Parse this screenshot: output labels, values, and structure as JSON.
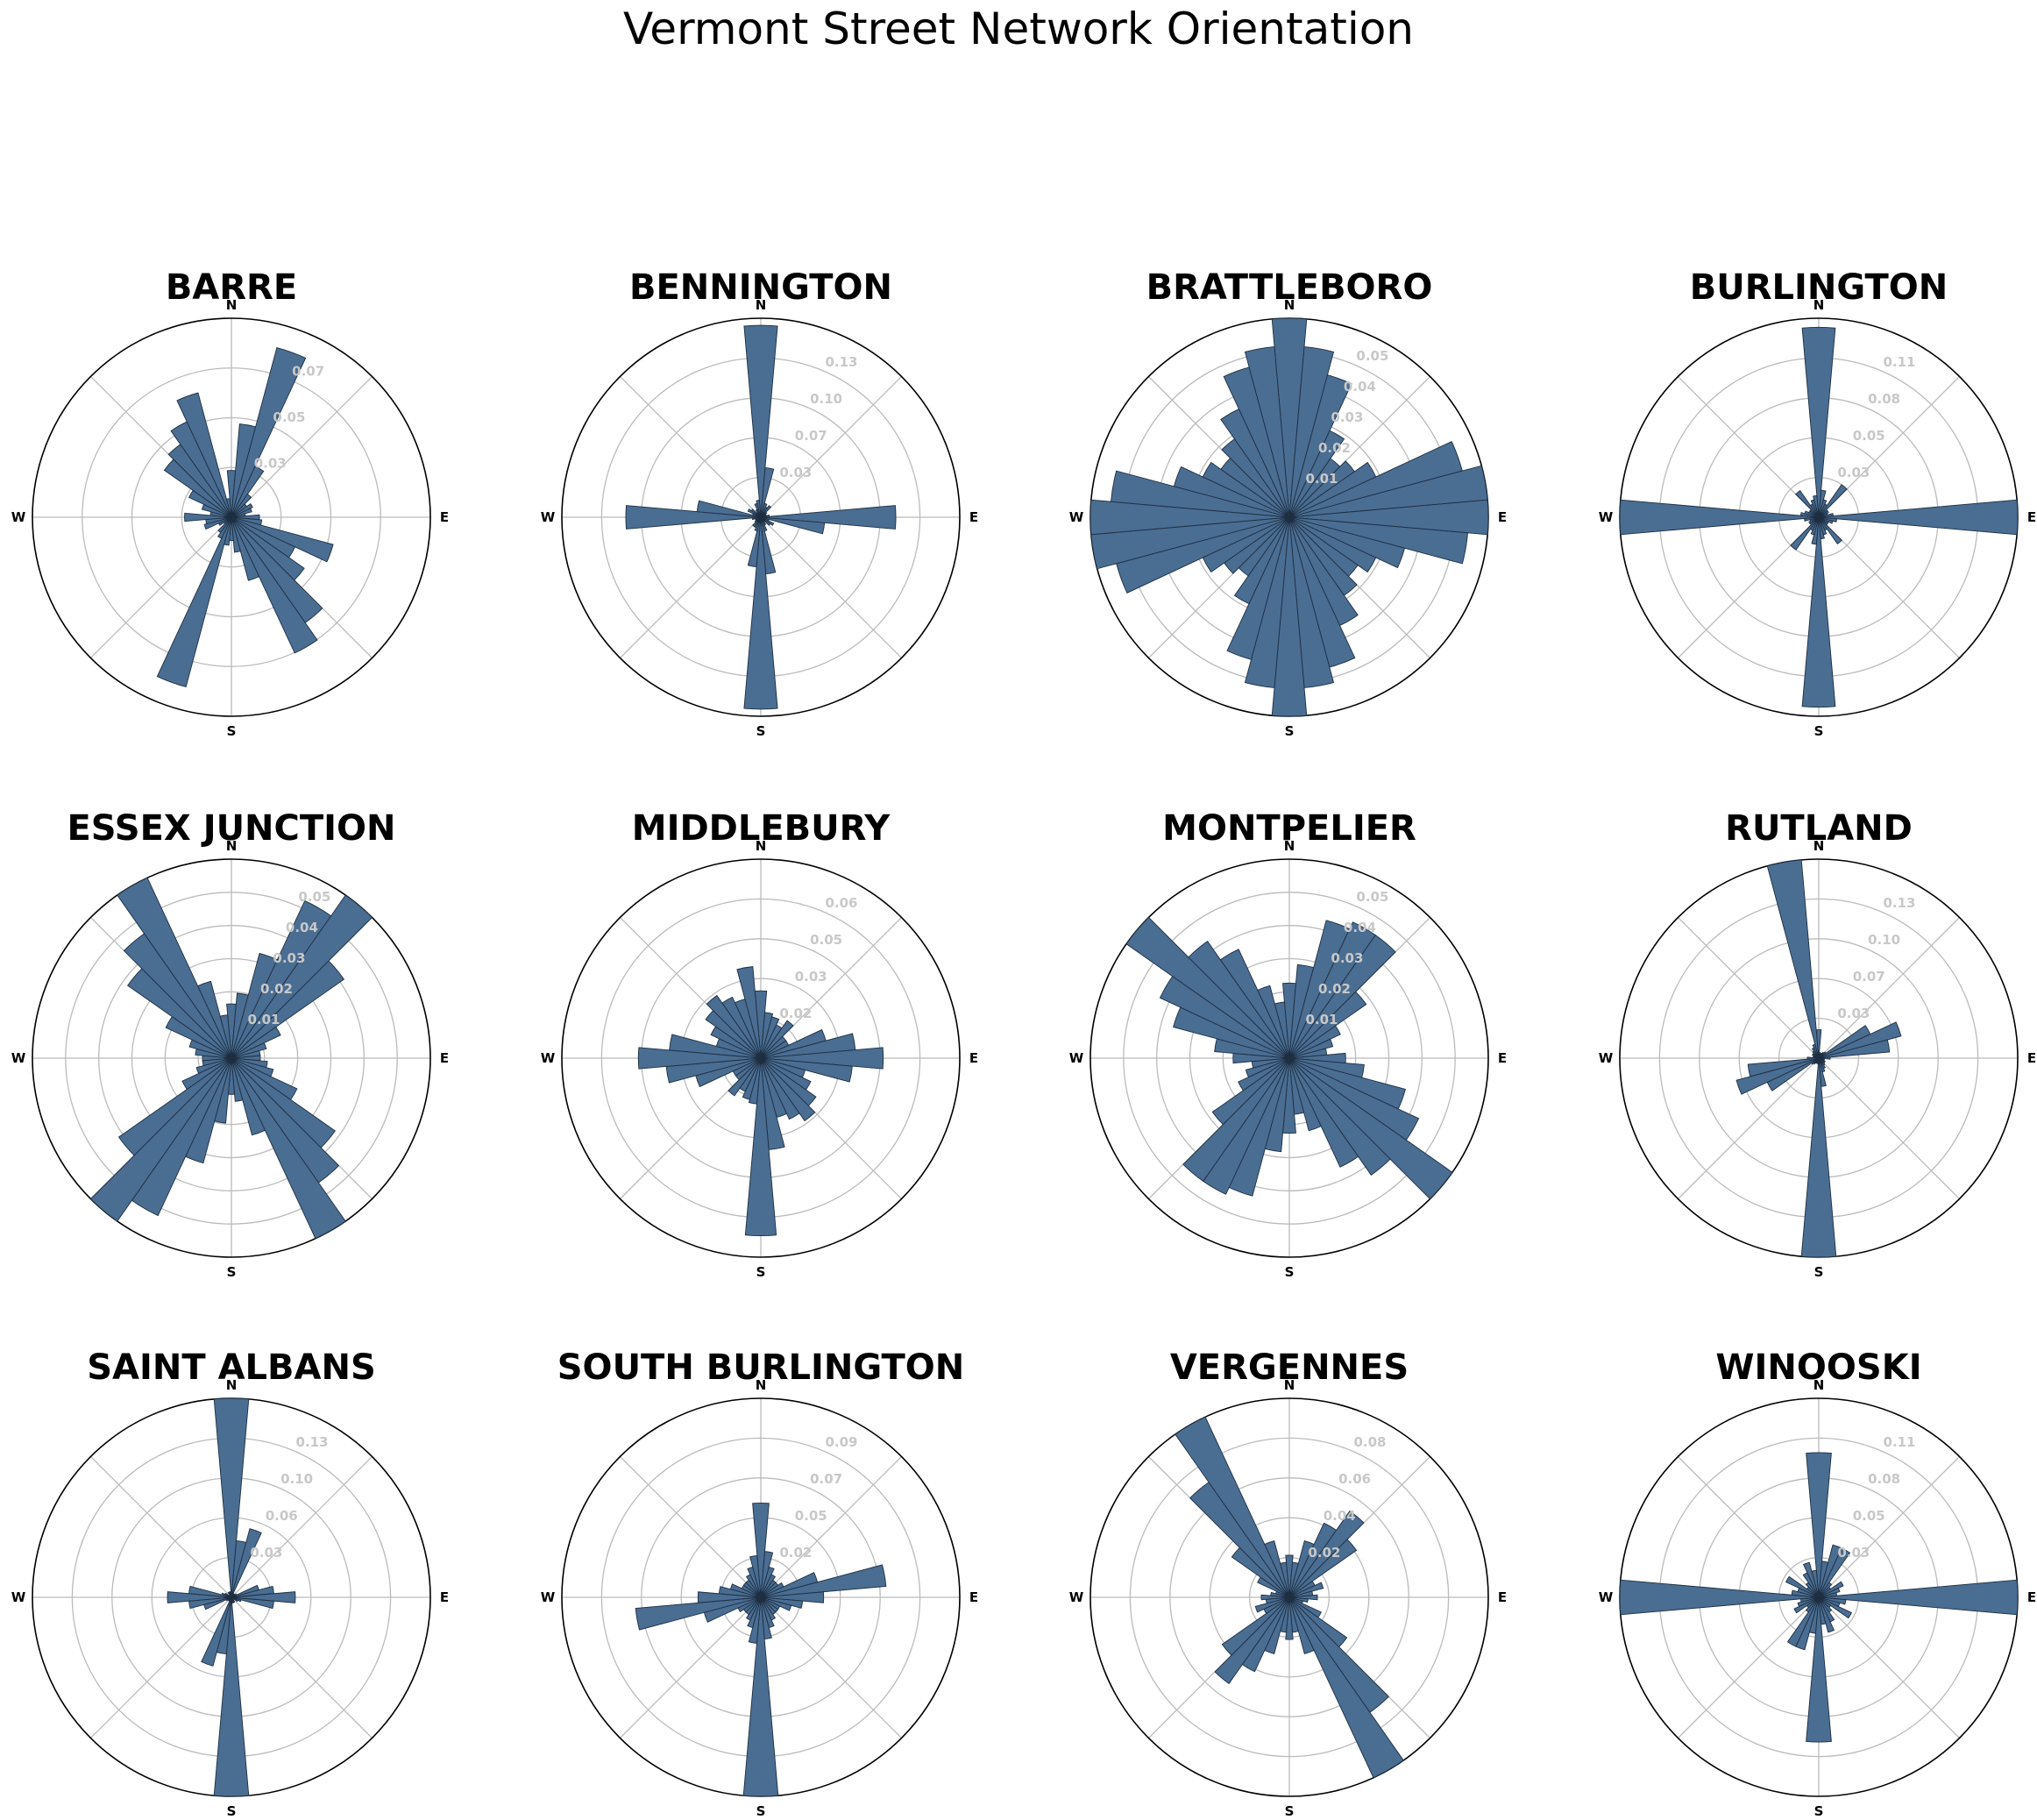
{
  "title": "Vermont Street Network Orientation",
  "colors": {
    "bar_fill": "#4a6d92",
    "bar_edge": "#1e2f42",
    "grid": "#bbbbbb",
    "outer_ring": "#000000",
    "tick_label": "#c8c8c8"
  },
  "directions": [
    "N",
    "E",
    "S",
    "W"
  ],
  "chart_data": [
    {
      "type": "polar-bar",
      "title": "BARRE",
      "bins": 36,
      "bin_start_deg": 0,
      "direction": "clockwise",
      "zero_location": "N",
      "ytick_labels": [
        "0.03",
        "0.05",
        "0.07"
      ],
      "rmax": 0.085,
      "grid": true,
      "values": [
        0.02,
        0.04,
        0.075,
        0.024,
        0.012,
        0.008,
        0.01,
        0.009,
        0.006,
        0.012,
        0.013,
        0.045,
        0.03,
        0.038,
        0.055,
        0.064,
        0.028,
        0.015,
        0.01,
        0.012,
        0.075,
        0.01,
        0.008,
        0.004,
        0.006,
        0.012,
        0.011,
        0.02,
        0.009,
        0.013,
        0.02,
        0.035,
        0.038,
        0.045,
        0.055,
        0.008
      ]
    },
    {
      "type": "polar-bar",
      "title": "BENNINGTON",
      "bins": 36,
      "bin_start_deg": 0,
      "direction": "clockwise",
      "zero_location": "N",
      "ytick_labels": [
        "0.03",
        "0.07",
        "0.10",
        "0.13"
      ],
      "rmax": 0.14,
      "grid": true,
      "values": [
        0.135,
        0.035,
        0.01,
        0.008,
        0.01,
        0.005,
        0.004,
        0.004,
        0.006,
        0.095,
        0.045,
        0.006,
        0.01,
        0.008,
        0.004,
        0.006,
        0.01,
        0.04,
        0.135,
        0.035,
        0.01,
        0.008,
        0.008,
        0.005,
        0.004,
        0.004,
        0.006,
        0.095,
        0.045,
        0.006,
        0.01,
        0.008,
        0.004,
        0.006,
        0.01,
        0.012
      ]
    },
    {
      "type": "polar-bar",
      "title": "BRATTLEBORO",
      "bins": 36,
      "bin_start_deg": 0,
      "direction": "clockwise",
      "zero_location": "N",
      "ytick_labels": [
        "0.01",
        "0.02",
        "0.03",
        "0.04",
        "0.05"
      ],
      "rmax": 0.05,
      "grid": true,
      "values": [
        0.05,
        0.043,
        0.037,
        0.024,
        0.018,
        0.02,
        0.024,
        0.045,
        0.05,
        0.05,
        0.045,
        0.03,
        0.024,
        0.021,
        0.024,
        0.03,
        0.039,
        0.043,
        0.05,
        0.043,
        0.037,
        0.024,
        0.018,
        0.02,
        0.024,
        0.045,
        0.05,
        0.05,
        0.045,
        0.03,
        0.024,
        0.021,
        0.024,
        0.03,
        0.039,
        0.043
      ]
    },
    {
      "type": "polar-bar",
      "title": "BURLINGTON",
      "bins": 36,
      "bin_start_deg": 0,
      "direction": "clockwise",
      "zero_location": "N",
      "ytick_labels": [
        "0.03",
        "0.05",
        "0.08",
        "0.11"
      ],
      "rmax": 0.11,
      "grid": true,
      "values": [
        0.105,
        0.015,
        0.01,
        0.008,
        0.022,
        0.006,
        0.006,
        0.005,
        0.008,
        0.115,
        0.01,
        0.008,
        0.006,
        0.006,
        0.018,
        0.008,
        0.01,
        0.012,
        0.105,
        0.015,
        0.01,
        0.008,
        0.022,
        0.006,
        0.006,
        0.005,
        0.008,
        0.115,
        0.01,
        0.008,
        0.006,
        0.006,
        0.018,
        0.008,
        0.01,
        0.012
      ]
    },
    {
      "type": "polar-bar",
      "title": "ESSEX JUNCTION",
      "bins": 36,
      "bin_start_deg": 0,
      "direction": "clockwise",
      "zero_location": "N",
      "ytick_labels": [
        "0.01",
        "0.02",
        "0.03",
        "0.04",
        "0.05"
      ],
      "rmax": 0.055,
      "grid": true,
      "values": [
        0.015,
        0.018,
        0.03,
        0.048,
        0.055,
        0.038,
        0.015,
        0.01,
        0.008,
        0.008,
        0.01,
        0.012,
        0.02,
        0.035,
        0.042,
        0.055,
        0.022,
        0.012,
        0.01,
        0.018,
        0.03,
        0.048,
        0.055,
        0.038,
        0.015,
        0.01,
        0.008,
        0.008,
        0.01,
        0.012,
        0.02,
        0.035,
        0.042,
        0.055,
        0.022,
        0.012
      ]
    },
    {
      "type": "polar-bar",
      "title": "MIDDLEBURY",
      "bins": 36,
      "bin_start_deg": 0,
      "direction": "clockwise",
      "zero_location": "N",
      "ytick_labels": [
        "0.02",
        "0.03",
        "0.05",
        "0.06"
      ],
      "rmax": 0.065,
      "grid": true,
      "values": [
        0.022,
        0.015,
        0.014,
        0.012,
        0.015,
        0.01,
        0.01,
        0.022,
        0.031,
        0.04,
        0.03,
        0.015,
        0.018,
        0.022,
        0.025,
        0.022,
        0.02,
        0.03,
        0.058,
        0.015,
        0.014,
        0.012,
        0.015,
        0.01,
        0.01,
        0.022,
        0.031,
        0.04,
        0.03,
        0.015,
        0.018,
        0.022,
        0.025,
        0.022,
        0.02,
        0.03
      ]
    },
    {
      "type": "polar-bar",
      "title": "MONTPELIER",
      "bins": 36,
      "bin_start_deg": 0,
      "direction": "clockwise",
      "zero_location": "N",
      "ytick_labels": [
        "0.01",
        "0.02",
        "0.03",
        "0.04",
        "0.05"
      ],
      "rmax": 0.053,
      "grid": true,
      "values": [
        0.02,
        0.025,
        0.038,
        0.04,
        0.04,
        0.025,
        0.015,
        0.012,
        0.01,
        0.015,
        0.02,
        0.032,
        0.038,
        0.053,
        0.038,
        0.032,
        0.02,
        0.015,
        0.02,
        0.025,
        0.038,
        0.04,
        0.04,
        0.025,
        0.015,
        0.012,
        0.01,
        0.015,
        0.02,
        0.032,
        0.038,
        0.053,
        0.038,
        0.032,
        0.02,
        0.015
      ]
    },
    {
      "type": "polar-bar",
      "title": "RUTLAND",
      "bins": 36,
      "bin_start_deg": 0,
      "direction": "clockwise",
      "zero_location": "N",
      "ytick_labels": [
        "0.03",
        "0.07",
        "0.10",
        "0.13"
      ],
      "rmax": 0.14,
      "grid": true,
      "values": [
        0.02,
        0.004,
        0.003,
        0.004,
        0.005,
        0.006,
        0.04,
        0.06,
        0.05,
        0.008,
        0.004,
        0.004,
        0.005,
        0.005,
        0.006,
        0.008,
        0.01,
        0.02,
        0.14,
        0.004,
        0.003,
        0.004,
        0.005,
        0.006,
        0.04,
        0.06,
        0.05,
        0.008,
        0.004,
        0.004,
        0.005,
        0.005,
        0.006,
        0.008,
        0.01,
        0.14
      ]
    },
    {
      "type": "polar-bar",
      "title": "SAINT ALBANS",
      "bins": 36,
      "bin_start_deg": 0,
      "direction": "clockwise",
      "zero_location": "N",
      "ytick_labels": [
        "0.03",
        "0.06",
        "0.10",
        "0.13"
      ],
      "rmax": 0.14,
      "grid": true,
      "values": [
        0.14,
        0.04,
        0.05,
        0.003,
        0.002,
        0.003,
        0.004,
        0.02,
        0.03,
        0.045,
        0.03,
        0.007,
        0.005,
        0.002,
        0.002,
        0.004,
        0.004,
        0.004,
        0.14,
        0.04,
        0.05,
        0.003,
        0.002,
        0.003,
        0.004,
        0.02,
        0.03,
        0.045,
        0.03,
        0.007,
        0.005,
        0.002,
        0.002,
        0.004,
        0.004,
        0.004
      ]
    },
    {
      "type": "polar-bar",
      "title": "SOUTH BURLINGTON",
      "bins": 36,
      "bin_start_deg": 0,
      "direction": "clockwise",
      "zero_location": "N",
      "ytick_labels": [
        "0.02",
        "0.05",
        "0.07",
        "0.09"
      ],
      "rmax": 0.095,
      "grid": true,
      "values": [
        0.045,
        0.022,
        0.015,
        0.012,
        0.01,
        0.01,
        0.012,
        0.028,
        0.06,
        0.03,
        0.02,
        0.015,
        0.01,
        0.01,
        0.01,
        0.012,
        0.015,
        0.02,
        0.095,
        0.022,
        0.015,
        0.012,
        0.01,
        0.01,
        0.012,
        0.028,
        0.06,
        0.03,
        0.02,
        0.015,
        0.01,
        0.01,
        0.01,
        0.012,
        0.015,
        0.02
      ]
    },
    {
      "type": "polar-bar",
      "title": "VERGENNES",
      "bins": 36,
      "bin_start_deg": 0,
      "direction": "clockwise",
      "zero_location": "N",
      "ytick_labels": [
        "0.02",
        "0.04",
        "0.06",
        "0.08"
      ],
      "rmax": 0.085,
      "grid": true,
      "values": [
        0.018,
        0.015,
        0.025,
        0.035,
        0.045,
        0.035,
        0.012,
        0.015,
        0.01,
        0.012,
        0.008,
        0.006,
        0.015,
        0.03,
        0.06,
        0.085,
        0.025,
        0.015,
        0.018,
        0.015,
        0.025,
        0.035,
        0.045,
        0.035,
        0.012,
        0.015,
        0.01,
        0.012,
        0.008,
        0.006,
        0.015,
        0.03,
        0.06,
        0.085,
        0.025,
        0.015
      ]
    },
    {
      "type": "polar-bar",
      "title": "WINOOSKI",
      "bins": 36,
      "bin_start_deg": 0,
      "direction": "clockwise",
      "zero_location": "N",
      "ytick_labels": [
        "0.03",
        "0.05",
        "0.08",
        "0.11"
      ],
      "rmax": 0.11,
      "grid": true,
      "values": [
        0.08,
        0.02,
        0.03,
        0.03,
        0.01,
        0.008,
        0.015,
        0.012,
        0.01,
        0.115,
        0.015,
        0.012,
        0.02,
        0.008,
        0.01,
        0.015,
        0.02,
        0.015,
        0.08,
        0.02,
        0.03,
        0.03,
        0.01,
        0.008,
        0.015,
        0.012,
        0.01,
        0.115,
        0.015,
        0.012,
        0.02,
        0.008,
        0.01,
        0.015,
        0.02,
        0.015
      ]
    }
  ]
}
